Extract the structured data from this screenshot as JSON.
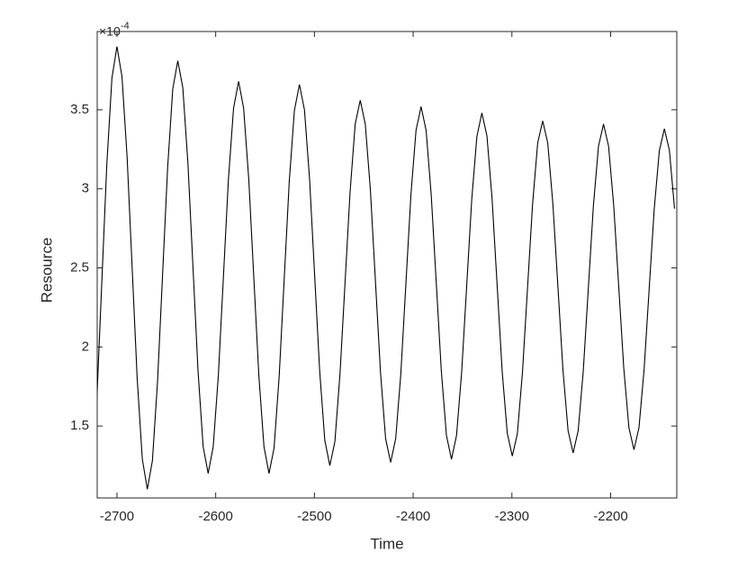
{
  "chart_data": {
    "type": "line",
    "xlabel": "Time",
    "ylabel": "Resource",
    "y_multiplier": "×10",
    "y_exponent": "-4",
    "x": [
      -2720.5,
      -2715.4,
      -2710.3,
      -2705.1,
      -2700,
      -2694.9,
      -2689.7,
      -2684.6,
      -2679.5,
      -2674.3,
      -2669.2,
      -2664.1,
      -2658.9,
      -2653.8,
      -2648.7,
      -2643.5,
      -2638.4,
      -2633.3,
      -2628.1,
      -2623.0,
      -2617.9,
      -2612.7,
      -2607.6,
      -2602.5,
      -2597.3,
      -2592.2,
      -2587.1,
      -2581.9,
      -2576.8,
      -2571.7,
      -2566.5,
      -2561.4,
      -2556.3,
      -2551.1,
      -2546.0,
      -2540.9,
      -2535.7,
      -2530.6,
      -2525.5,
      -2520.3,
      -2515.2,
      -2510.1,
      -2504.9,
      -2499.8,
      -2494.7,
      -2489.5,
      -2484.4,
      -2479.3,
      -2474.1,
      -2469.0,
      -2463.9,
      -2458.7,
      -2453.6,
      -2448.5,
      -2443.3,
      -2438.2,
      -2433.1,
      -2427.9,
      -2422.8,
      -2417.7,
      -2412.5,
      -2407.4,
      -2402.3,
      -2397.1,
      -2392.0,
      -2386.9,
      -2381.7,
      -2376.6,
      -2371.5,
      -2366.3,
      -2361.2,
      -2356.1,
      -2350.9,
      -2345.8,
      -2340.7,
      -2335.5,
      -2330.4,
      -2325.3,
      -2320.1,
      -2315.0,
      -2309.9,
      -2304.7,
      -2299.6,
      -2294.5,
      -2289.3,
      -2284.2,
      -2279.1,
      -2273.9,
      -2268.8,
      -2263.7,
      -2258.5,
      -2253.4,
      -2248.3,
      -2243.1,
      -2238.0,
      -2232.9,
      -2227.7,
      -2222.6,
      -2217.5,
      -2212.3,
      -2207.2,
      -2202.1,
      -2196.9,
      -2191.8,
      -2186.7,
      -2181.5,
      -2176.4,
      -2171.3,
      -2166.1,
      -2161.0,
      -2155.9,
      -2150.7,
      -2145.6,
      -2140.5,
      -2135.3
    ],
    "values": [
      1.65,
      2.4,
      3.15,
      3.7,
      3.9,
      3.71,
      3.2,
      2.5,
      1.8,
      1.29,
      1.1,
      1.28,
      1.78,
      2.455,
      3.13,
      3.63,
      3.81,
      3.64,
      3.16,
      2.505,
      1.85,
      1.37,
      1.2,
      1.37,
      1.82,
      2.44,
      3.06,
      3.51,
      3.68,
      3.51,
      3.06,
      2.44,
      1.82,
      1.37,
      1.2,
      1.36,
      1.815,
      2.43,
      3.045,
      3.495,
      3.66,
      3.5,
      3.06,
      2.455,
      1.85,
      1.41,
      1.25,
      1.4,
      1.83,
      2.405,
      2.98,
      3.41,
      3.56,
      3.41,
      2.99,
      2.415,
      1.84,
      1.42,
      1.27,
      1.42,
      1.83,
      2.395,
      2.96,
      3.37,
      3.52,
      3.37,
      2.96,
      2.405,
      1.85,
      1.44,
      1.29,
      1.44,
      1.84,
      2.385,
      2.93,
      3.33,
      3.48,
      3.335,
      2.94,
      2.395,
      1.85,
      1.455,
      1.31,
      1.45,
      1.84,
      2.37,
      2.9,
      3.29,
      3.43,
      3.29,
      2.905,
      2.38,
      1.855,
      1.47,
      1.33,
      1.47,
      1.85,
      2.37,
      2.89,
      3.27,
      3.41,
      3.27,
      2.895,
      2.38,
      1.865,
      1.49,
      1.35,
      1.49,
      1.86,
      2.365,
      2.87,
      3.24,
      3.38,
      3.245,
      2.875
    ],
    "color": "#000000",
    "xlim": [
      -2720,
      -2133
    ],
    "xticks": [
      -2700,
      -2600,
      -2500,
      -2400,
      -2300,
      -2200
    ],
    "ylim": [
      1.045,
      3.995
    ],
    "yticks": [
      1.5,
      2,
      2.5,
      3,
      3.5
    ],
    "grid": false
  }
}
